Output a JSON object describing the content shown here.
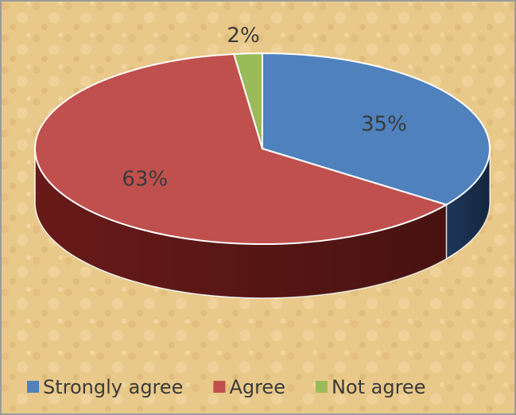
{
  "colors": {
    "background": "#e9c98a",
    "border": "#9a9a9a",
    "label_text": "#3a3a3a"
  },
  "chart_data": {
    "type": "pie",
    "variant": "3d",
    "title": "",
    "slices": [
      {
        "label": "Strongly agree",
        "value": 35,
        "display": "35%",
        "color": "#4f81bd",
        "side_color": "#1f3a5f"
      },
      {
        "label": "Agree",
        "value": 63,
        "display": "63%",
        "color": "#c0504d",
        "side_color": "#6e1c1a"
      },
      {
        "label": "Not agree",
        "value": 2,
        "display": "2%",
        "color": "#9bbb59",
        "side_color": "#5b7a2b"
      }
    ],
    "legend_position": "bottom",
    "grid": false
  }
}
